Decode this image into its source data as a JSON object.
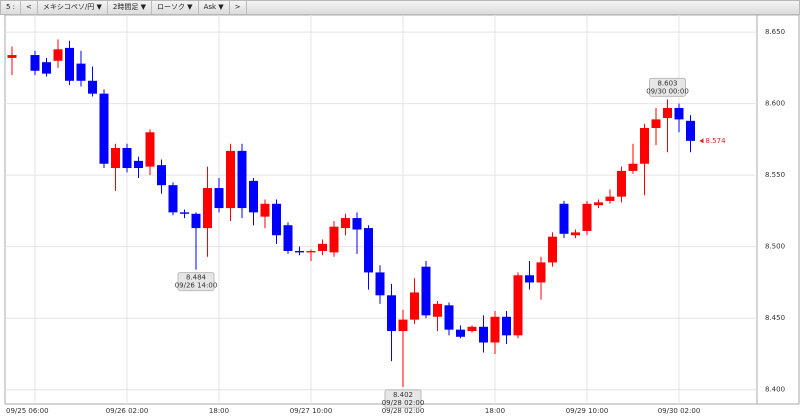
{
  "toolbar": [
    "5 :",
    "<",
    "メキシコペソ/円 ▼",
    "2時間足 ▼",
    "ローソク ▼",
    "Ask ▼",
    ">"
  ],
  "chart_data": {
    "type": "candlestick",
    "categories": [
      null,
      null,
      "09/25 06:00",
      null,
      null,
      null,
      null,
      null,
      null,
      null,
      "09/26 02:00",
      null,
      null,
      null,
      null,
      null,
      null,
      null,
      "18:00",
      null,
      null,
      null,
      null,
      null,
      null,
      null,
      "09/27 10:00",
      null,
      null,
      null,
      null,
      null,
      null,
      null,
      "09/28 02:00",
      null,
      null,
      null,
      null,
      null,
      null,
      null,
      "18:00",
      null,
      null,
      null,
      null,
      null,
      null,
      null,
      "09/29 10:00",
      null,
      null,
      null,
      null,
      null,
      null,
      null,
      "09/30 02:00",
      null
    ],
    "open": [
      8.632,
      null,
      8.634,
      8.629,
      8.63,
      8.639,
      8.628,
      8.616,
      8.607,
      8.555,
      8.569,
      8.56,
      8.556,
      8.557,
      8.543,
      8.524,
      8.523,
      8.513,
      8.541,
      8.527,
      8.567,
      8.546,
      8.521,
      8.53,
      8.515,
      8.497,
      8.496,
      8.497,
      8.496,
      8.513,
      8.52,
      8.513,
      8.482,
      8.466,
      8.441,
      8.449,
      8.486,
      8.451,
      8.459,
      8.442,
      8.441,
      8.444,
      8.433,
      8.451,
      8.438,
      8.48,
      8.475,
      8.489,
      8.53,
      8.508,
      8.511,
      8.529,
      8.532,
      8.535,
      8.553,
      8.558,
      8.583,
      8.59,
      8.597,
      8.588
    ],
    "high": [
      8.64,
      null,
      8.637,
      8.632,
      8.645,
      8.644,
      8.637,
      8.626,
      8.61,
      8.572,
      8.572,
      8.563,
      8.582,
      8.561,
      8.545,
      8.526,
      8.524,
      8.556,
      8.548,
      8.572,
      8.572,
      8.548,
      8.533,
      8.533,
      8.517,
      8.5,
      8.498,
      8.505,
      8.518,
      8.523,
      8.524,
      8.515,
      8.487,
      8.474,
      8.456,
      8.478,
      8.49,
      8.462,
      8.461,
      8.445,
      8.445,
      8.452,
      8.455,
      8.455,
      8.482,
      8.49,
      8.493,
      8.51,
      8.532,
      8.512,
      8.532,
      8.533,
      8.54,
      8.556,
      8.572,
      8.586,
      8.597,
      8.603,
      8.6,
      8.592
    ],
    "low": [
      8.62,
      null,
      8.62,
      8.619,
      8.625,
      8.613,
      8.612,
      8.605,
      8.555,
      8.539,
      8.552,
      8.548,
      8.55,
      8.537,
      8.522,
      8.52,
      8.484,
      8.493,
      8.524,
      8.518,
      8.52,
      8.515,
      8.513,
      8.502,
      8.495,
      8.494,
      8.49,
      8.494,
      8.493,
      8.508,
      8.495,
      8.47,
      8.46,
      8.42,
      8.402,
      8.446,
      8.45,
      8.441,
      8.438,
      8.436,
      8.44,
      8.426,
      8.425,
      8.432,
      8.436,
      8.47,
      8.463,
      8.486,
      8.506,
      8.506,
      8.508,
      8.527,
      8.53,
      8.531,
      8.551,
      8.536,
      8.571,
      8.566,
      8.58,
      8.566
    ],
    "close": [
      8.634,
      null,
      8.623,
      8.621,
      8.638,
      8.616,
      8.616,
      8.607,
      8.558,
      8.569,
      8.555,
      8.555,
      8.58,
      8.543,
      8.524,
      8.523,
      8.513,
      8.541,
      8.527,
      8.567,
      8.527,
      8.524,
      8.53,
      8.508,
      8.497,
      8.496,
      8.497,
      8.502,
      8.514,
      8.52,
      8.512,
      8.482,
      8.466,
      8.441,
      8.449,
      8.468,
      8.452,
      8.46,
      8.442,
      8.437,
      8.444,
      8.433,
      8.451,
      8.438,
      8.48,
      8.475,
      8.489,
      8.507,
      8.509,
      8.51,
      8.53,
      8.531,
      8.535,
      8.553,
      8.558,
      8.583,
      8.589,
      8.597,
      8.589,
      8.574
    ],
    "up_color": "#ff0000",
    "down_color": "#0000ff",
    "ylim": [
      8.39,
      8.662
    ],
    "yticks": [
      {
        "value": 8.4,
        "label": "8.400"
      },
      {
        "value": 8.45,
        "label": "8.450"
      },
      {
        "value": 8.5,
        "label": "8.500"
      },
      {
        "value": 8.55,
        "label": "8.550"
      },
      {
        "value": 8.6,
        "label": "8.600"
      },
      {
        "value": 8.65,
        "label": "8.650"
      }
    ],
    "grid": true,
    "annotations": [
      {
        "value": 8.484,
        "time": "09/26 14:00",
        "kind": "low"
      },
      {
        "value": 8.402,
        "time": "09/28 02:00",
        "kind": "low"
      },
      {
        "value": 8.603,
        "time": "09/30 00:00",
        "kind": "high"
      }
    ],
    "last_price": 8.574,
    "last_price_color": "#e02020"
  }
}
